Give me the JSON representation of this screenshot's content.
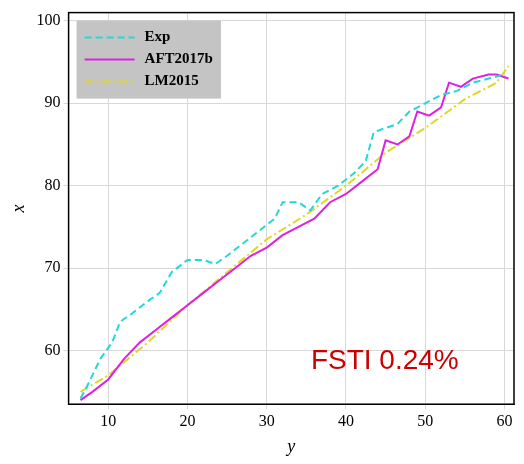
{
  "chart_data": {
    "type": "line",
    "x_label": "y",
    "y_label": "x",
    "annotation": "FSTI 0.24%",
    "xlim": [
      5,
      61.2
    ],
    "xticks": [
      10,
      20,
      30,
      40,
      50,
      60
    ],
    "ylim": [
      53.5,
      101
    ],
    "yticks": [
      60,
      70,
      80,
      90,
      100
    ],
    "grid": true,
    "legend": "upper left",
    "series": [
      {
        "name": "Exp",
        "color": "#22d8d8",
        "line_style": "dashed",
        "x": [
          6.5,
          7.5,
          9,
          10.5,
          11.5,
          13,
          15,
          16.5,
          18,
          20,
          22,
          23.5,
          25,
          27,
          29,
          31,
          32,
          34,
          35.5,
          37,
          39,
          41,
          42.5,
          43.5,
          45,
          46.5,
          48,
          50,
          52,
          54,
          56,
          58,
          60
        ],
        "values": [
          54.2,
          56,
          59,
          61,
          63.5,
          64.5,
          66,
          67,
          69.5,
          71,
          71,
          70.5,
          71.5,
          73,
          74.5,
          76,
          78,
          78,
          77,
          79,
          80,
          81.5,
          83,
          86.5,
          87,
          87.5,
          89,
          90,
          91,
          91.5,
          92.5,
          93,
          93.5
        ]
      },
      {
        "name": "AFT2017b",
        "color": "#e020e0",
        "line_style": "solid",
        "x": [
          6.5,
          8,
          10,
          12,
          14,
          16,
          18,
          20,
          22,
          24,
          26,
          28,
          30,
          32,
          34,
          36,
          38,
          40,
          42,
          44,
          45,
          46.5,
          48,
          49,
          50.5,
          52,
          53,
          54.5,
          56,
          58,
          59,
          60.5
        ],
        "values": [
          54,
          55,
          56.5,
          59,
          61,
          62.5,
          64,
          65.5,
          67,
          68.5,
          70,
          71.5,
          72.5,
          74,
          75,
          76,
          78,
          79,
          80.5,
          82,
          85.5,
          85,
          86,
          89,
          88.5,
          89.5,
          92.5,
          92,
          93,
          93.5,
          93.5,
          93
        ]
      },
      {
        "name": "LM2015",
        "color": "#e0d820",
        "line_style": "dashdot",
        "x": [
          6.5,
          10,
          15,
          20,
          25,
          30,
          35,
          40,
          45,
          50,
          55,
          59,
          60.5
        ],
        "values": [
          55,
          57,
          61,
          65.5,
          69.5,
          73.5,
          76.5,
          80,
          84,
          87,
          90.5,
          92.5,
          94.5
        ]
      }
    ]
  }
}
